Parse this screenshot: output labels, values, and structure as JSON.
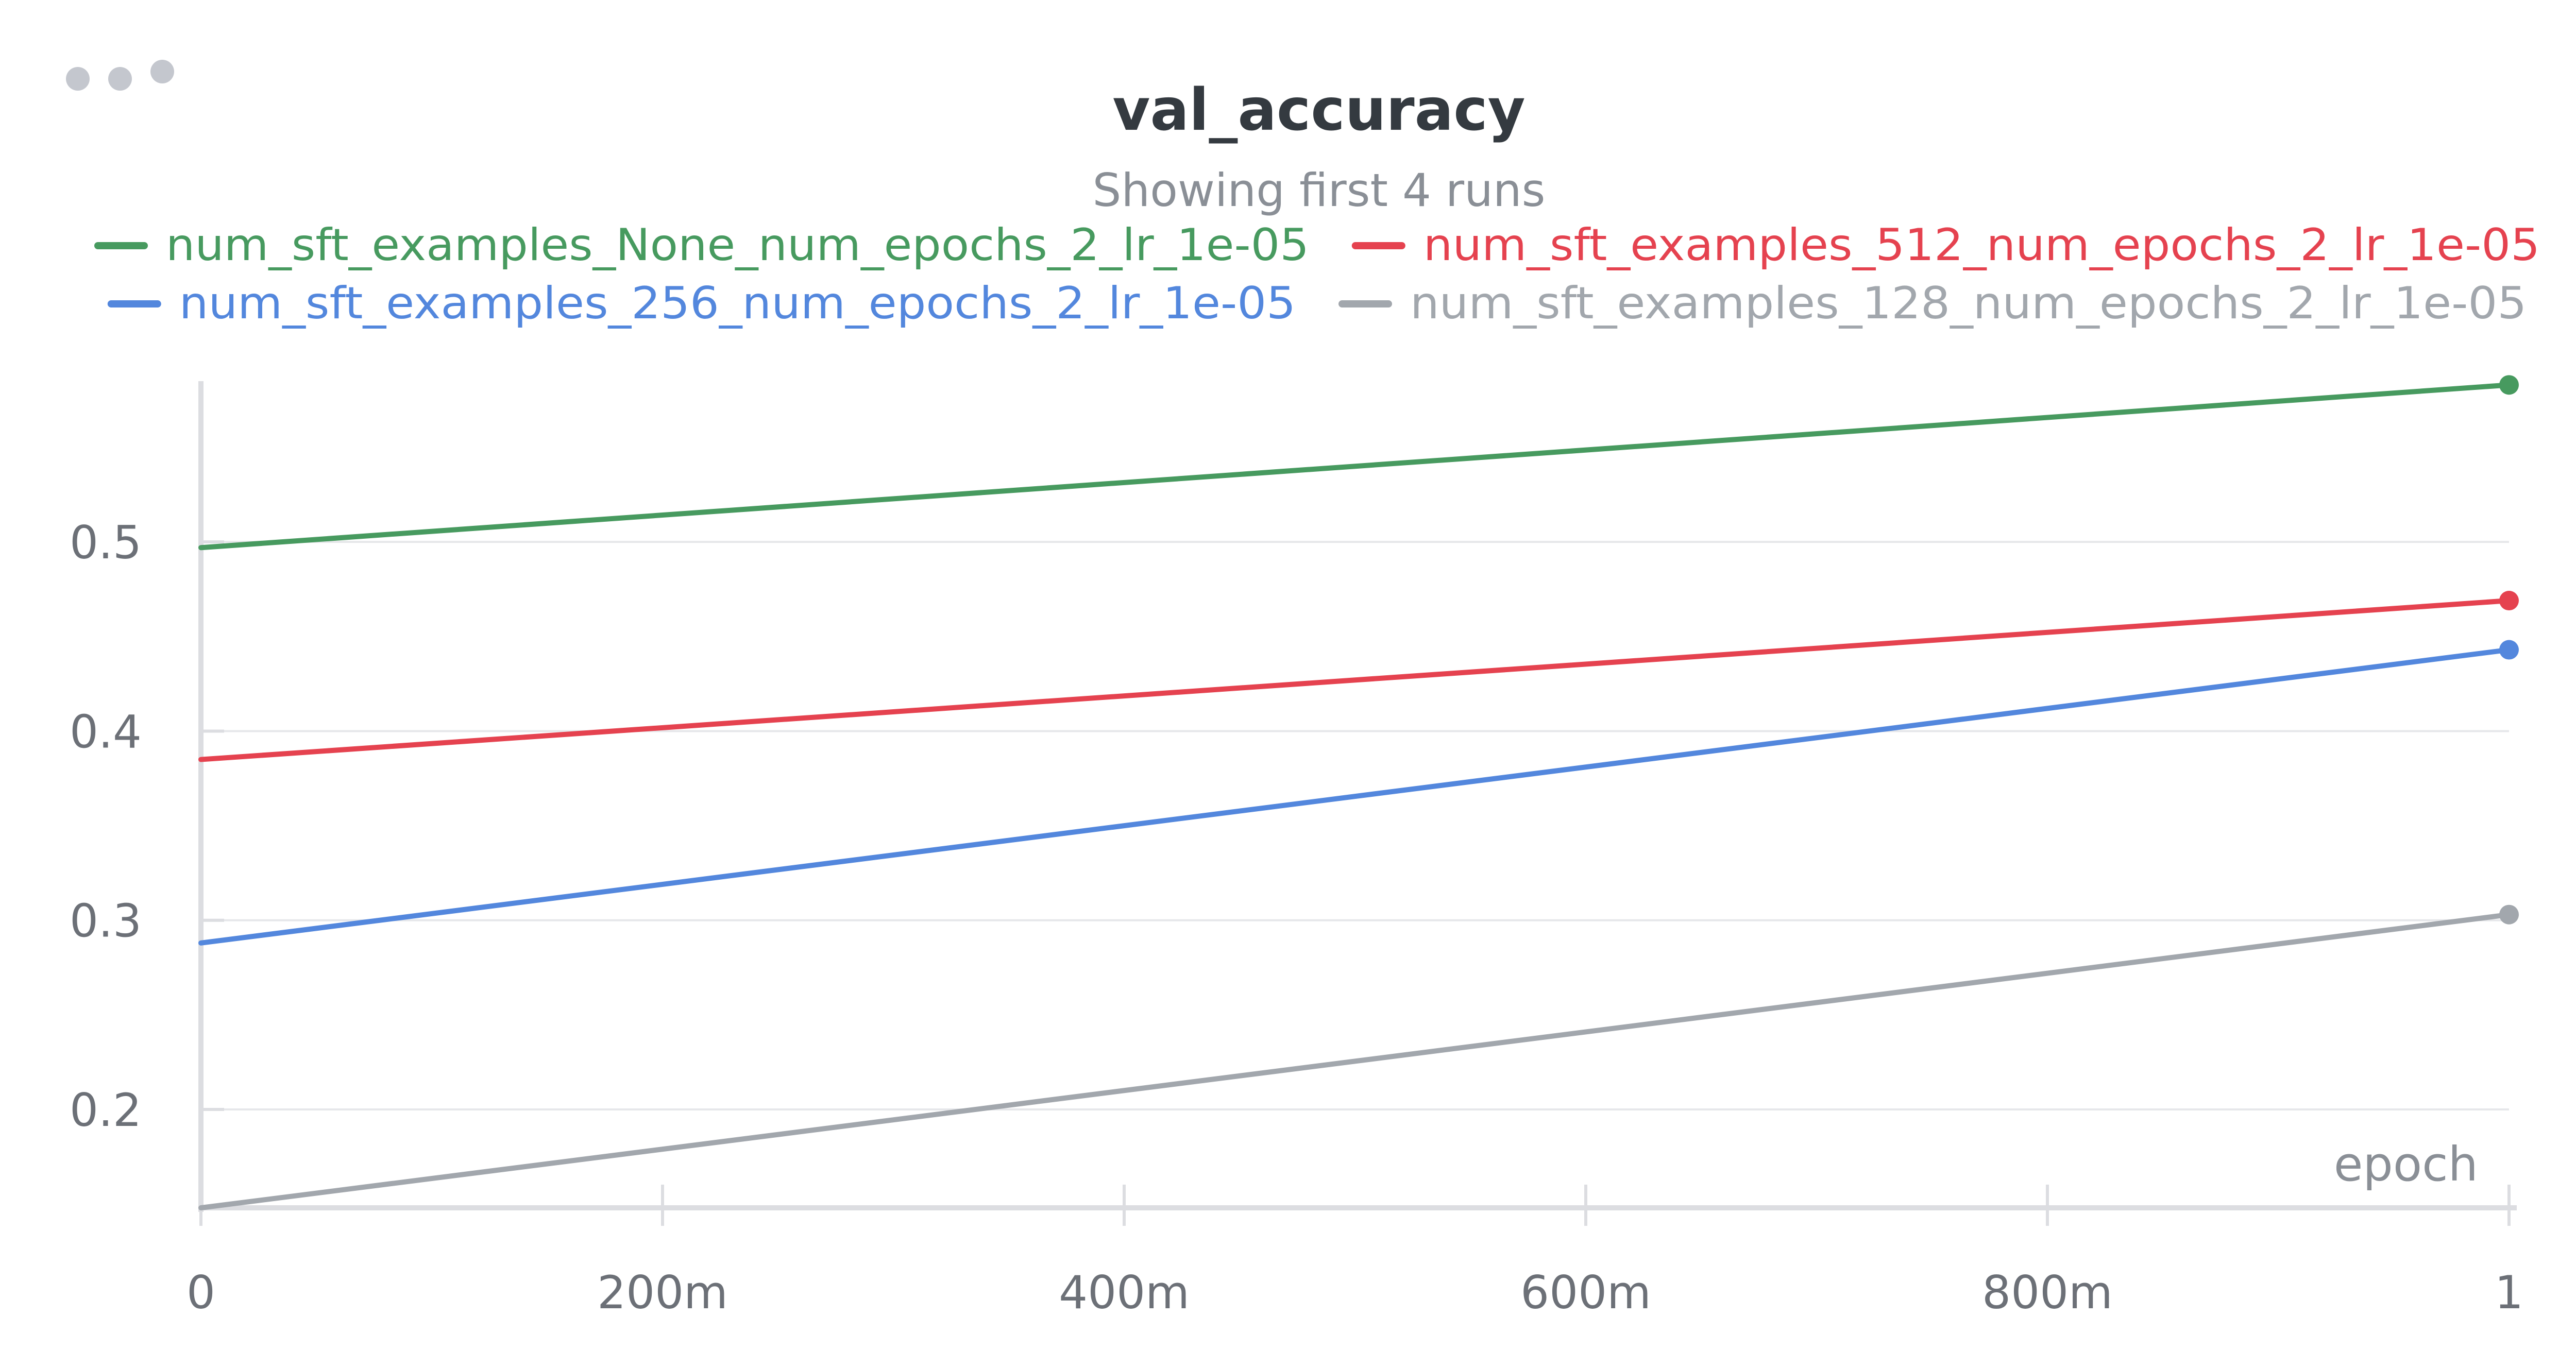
{
  "panel": {
    "menu_icon": "more-horizontal-icon"
  },
  "chart_data": {
    "type": "line",
    "title": "val_accuracy",
    "subtitle": "Showing first 4 runs",
    "xlabel": "epoch",
    "ylabel": "",
    "xlim": [
      0,
      1
    ],
    "ylim": [
      0.148,
      0.585
    ],
    "x_ticks": [
      0,
      0.2,
      0.4,
      0.6,
      0.8,
      1
    ],
    "x_tick_labels": [
      "0",
      "200m",
      "400m",
      "600m",
      "800m",
      "1"
    ],
    "y_ticks": [
      0.2,
      0.3,
      0.4,
      0.5
    ],
    "y_tick_labels": [
      "0.2",
      "0.3",
      "0.4",
      "0.5"
    ],
    "grid": true,
    "legend_position": "top",
    "series": [
      {
        "name": "num_sft_examples_None_num_epochs_2_lr_1e-05",
        "color": "#479a5f",
        "x": [
          0,
          1
        ],
        "y": [
          0.497,
          0.583
        ]
      },
      {
        "name": "num_sft_examples_512_num_epochs_2_lr_1e-05",
        "color": "#e5424f",
        "x": [
          0,
          1
        ],
        "y": [
          0.385,
          0.469
        ]
      },
      {
        "name": "num_sft_examples_256_num_epochs_2_lr_1e-05",
        "color": "#5387dd",
        "x": [
          0,
          1
        ],
        "y": [
          0.288,
          0.443
        ]
      },
      {
        "name": "num_sft_examples_128_num_epochs_2_lr_1e-05",
        "color": "#a2a7ad",
        "x": [
          0,
          1
        ],
        "y": [
          0.148,
          0.303
        ]
      }
    ]
  }
}
